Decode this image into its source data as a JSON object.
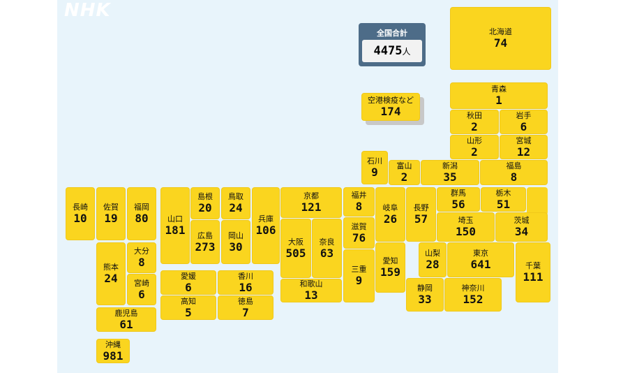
{
  "logo": "NHK",
  "total": {
    "label": "全国合計",
    "value": 4475,
    "unit": "人"
  },
  "prefectures": [
    {
      "name": "北海道",
      "value": 74
    },
    {
      "name": "空港検疫など",
      "value": 174
    },
    {
      "name": "青森",
      "value": 1
    },
    {
      "name": "秋田",
      "value": 2
    },
    {
      "name": "岩手",
      "value": 6
    },
    {
      "name": "山形",
      "value": 2
    },
    {
      "name": "宮城",
      "value": 12
    },
    {
      "name": "石川",
      "value": 9
    },
    {
      "name": "富山",
      "value": 2
    },
    {
      "name": "新潟",
      "value": 35
    },
    {
      "name": "福島",
      "value": 8
    },
    {
      "name": "長崎",
      "value": 10
    },
    {
      "name": "佐賀",
      "value": 19
    },
    {
      "name": "福岡",
      "value": 80
    },
    {
      "name": "山口",
      "value": 181
    },
    {
      "name": "島根",
      "value": 20
    },
    {
      "name": "鳥取",
      "value": 24
    },
    {
      "name": "広島",
      "value": 273
    },
    {
      "name": "岡山",
      "value": 30
    },
    {
      "name": "兵庫",
      "value": 106
    },
    {
      "name": "京都",
      "value": 121
    },
    {
      "name": "福井",
      "value": 8
    },
    {
      "name": "岐阜",
      "value": 26
    },
    {
      "name": "長野",
      "value": 57
    },
    {
      "name": "群馬",
      "value": 56
    },
    {
      "name": "栃木",
      "value": 51
    },
    {
      "name": "茨城",
      "value": 34
    },
    {
      "name": "埼玉",
      "value": 150
    },
    {
      "name": "熊本",
      "value": 24
    },
    {
      "name": "大分",
      "value": 8
    },
    {
      "name": "宮崎",
      "value": 6
    },
    {
      "name": "大阪",
      "value": 505
    },
    {
      "name": "奈良",
      "value": 63
    },
    {
      "name": "滋賀",
      "value": 76
    },
    {
      "name": "三重",
      "value": 9
    },
    {
      "name": "和歌山",
      "value": 13
    },
    {
      "name": "愛知",
      "value": 159
    },
    {
      "name": "愛媛",
      "value": 6
    },
    {
      "name": "香川",
      "value": 16
    },
    {
      "name": "高知",
      "value": 5
    },
    {
      "name": "徳島",
      "value": 7
    },
    {
      "name": "鹿児島",
      "value": 61
    },
    {
      "name": "沖縄",
      "value": 981
    },
    {
      "name": "山梨",
      "value": 28
    },
    {
      "name": "東京",
      "value": 641
    },
    {
      "name": "千葉",
      "value": 111
    },
    {
      "name": "静岡",
      "value": 33
    },
    {
      "name": "神奈川",
      "value": 152
    }
  ]
}
